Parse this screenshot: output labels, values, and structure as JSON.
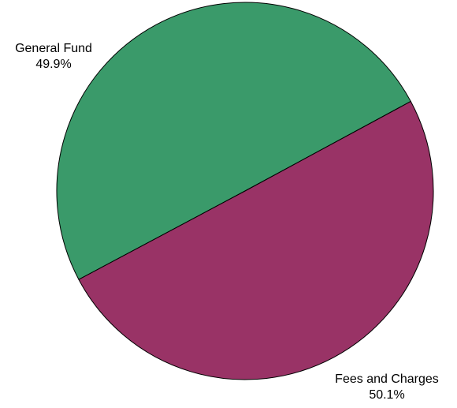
{
  "chart_data": {
    "type": "pie",
    "categories": [
      "General Fund",
      "Fees and Charges"
    ],
    "values": [
      49.9,
      50.1
    ],
    "value_labels": [
      "49.9%",
      "50.1%"
    ],
    "colors": [
      "#3a9a6a",
      "#993366"
    ]
  }
}
